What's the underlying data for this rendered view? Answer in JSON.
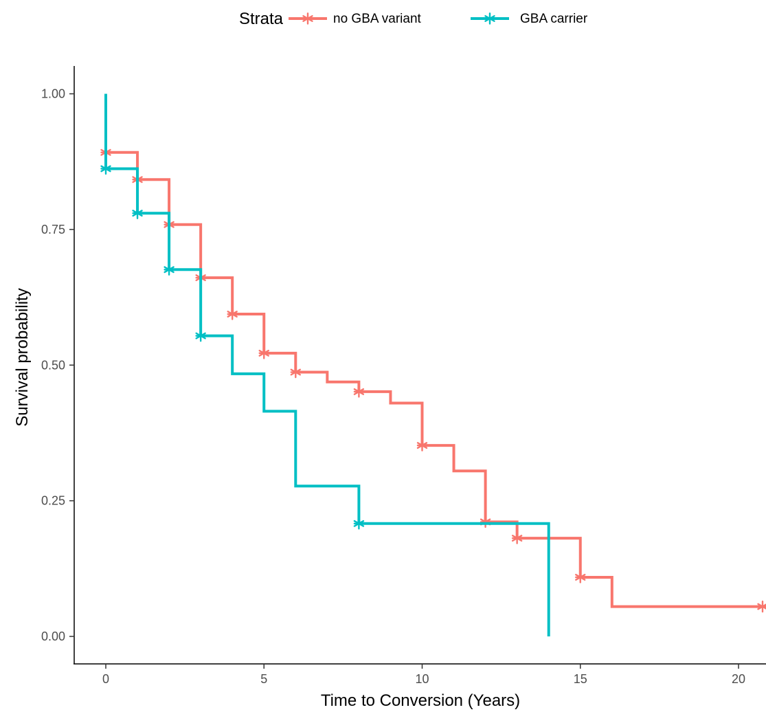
{
  "chart_data": {
    "type": "line",
    "subtype": "step",
    "xlabel": "Time to Conversion (Years)",
    "ylabel": "Survival probability",
    "xlim": [
      -1,
      21
    ],
    "ylim": [
      -0.04,
      1.05
    ],
    "x_ticks": [
      0,
      5,
      10,
      15,
      20
    ],
    "y_ticks": [
      0.0,
      0.25,
      0.5,
      0.75,
      1.0
    ],
    "x_tick_labels": [
      "0",
      "5",
      "10",
      "15",
      "20"
    ],
    "y_tick_labels": [
      "0.00",
      "0.25",
      "0.50",
      "0.75",
      "1.00"
    ],
    "grid": false,
    "legend": {
      "title": "Strata",
      "position": "top",
      "entries": [
        "no GBA variant",
        "GBA carrier"
      ]
    },
    "series": [
      {
        "name": "no GBA variant",
        "color": "#F8766D",
        "steps": [
          {
            "x": 0,
            "y": 1.0
          },
          {
            "x": 0,
            "y": 0.892
          },
          {
            "x": 1,
            "y": 0.842
          },
          {
            "x": 2,
            "y": 0.759
          },
          {
            "x": 3,
            "y": 0.661
          },
          {
            "x": 4,
            "y": 0.594
          },
          {
            "x": 5,
            "y": 0.522
          },
          {
            "x": 6,
            "y": 0.487
          },
          {
            "x": 7,
            "y": 0.469
          },
          {
            "x": 8,
            "y": 0.451
          },
          {
            "x": 9,
            "y": 0.43
          },
          {
            "x": 10,
            "y": 0.352
          },
          {
            "x": 11,
            "y": 0.305
          },
          {
            "x": 12,
            "y": 0.211
          },
          {
            "x": 13,
            "y": 0.181
          },
          {
            "x": 15,
            "y": 0.109
          },
          {
            "x": 16,
            "y": 0.055
          }
        ],
        "end_x": 21,
        "censored": [
          {
            "x": 0,
            "y": 0.892
          },
          {
            "x": 1,
            "y": 0.842
          },
          {
            "x": 2,
            "y": 0.759
          },
          {
            "x": 3,
            "y": 0.661
          },
          {
            "x": 4,
            "y": 0.594
          },
          {
            "x": 5,
            "y": 0.522
          },
          {
            "x": 6,
            "y": 0.487
          },
          {
            "x": 8,
            "y": 0.451
          },
          {
            "x": 10,
            "y": 0.352
          },
          {
            "x": 12,
            "y": 0.211
          },
          {
            "x": 13,
            "y": 0.181
          },
          {
            "x": 15,
            "y": 0.109
          },
          {
            "x": 21,
            "y": 0.055
          }
        ]
      },
      {
        "name": "GBA carrier",
        "color": "#00BFC4",
        "steps": [
          {
            "x": 0,
            "y": 1.0
          },
          {
            "x": 0,
            "y": 0.862
          },
          {
            "x": 1,
            "y": 0.78
          },
          {
            "x": 2,
            "y": 0.676
          },
          {
            "x": 3,
            "y": 0.554
          },
          {
            "x": 4,
            "y": 0.484
          },
          {
            "x": 5,
            "y": 0.415
          },
          {
            "x": 6,
            "y": 0.277
          },
          {
            "x": 8,
            "y": 0.208
          },
          {
            "x": 14,
            "y": 0.0
          }
        ],
        "end_x": 14,
        "censored": [
          {
            "x": 0,
            "y": 0.862
          },
          {
            "x": 1,
            "y": 0.78
          },
          {
            "x": 2,
            "y": 0.676
          },
          {
            "x": 3,
            "y": 0.554
          },
          {
            "x": 8,
            "y": 0.208
          }
        ]
      }
    ]
  }
}
